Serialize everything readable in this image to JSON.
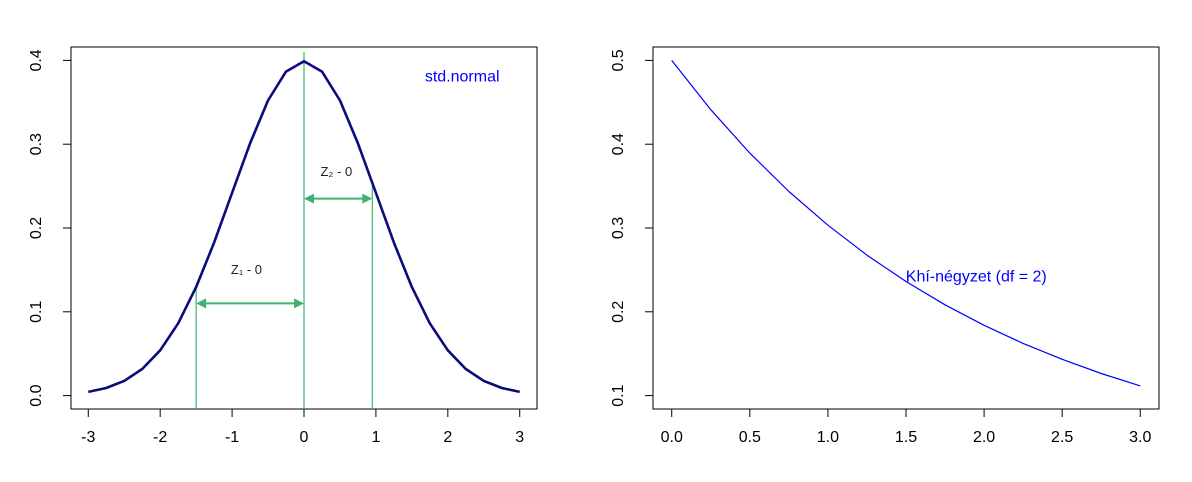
{
  "chart_data": [
    {
      "type": "line",
      "title": "",
      "xlabel": "",
      "ylabel": "",
      "xlim": [
        -3,
        3
      ],
      "ylim": [
        0,
        0.4
      ],
      "xticks": [
        "-3",
        "-2",
        "-1",
        "0",
        "1",
        "2",
        "3"
      ],
      "xtick_values": [
        -3,
        -2,
        -1,
        0,
        1,
        2,
        3
      ],
      "yticks": [
        "0.0",
        "0.1",
        "0.2",
        "0.3",
        "0.4"
      ],
      "ytick_values": [
        0,
        0.1,
        0.2,
        0.3,
        0.4
      ],
      "grid": false,
      "series": [
        {
          "x": [
            -3.0,
            -2.75,
            -2.5,
            -2.25,
            -2.0,
            -1.75,
            -1.5,
            -1.25,
            -1.0,
            -0.75,
            -0.5,
            -0.25,
            0.0,
            0.25,
            0.5,
            0.75,
            1.0,
            1.25,
            1.5,
            1.75,
            2.0,
            2.25,
            2.5,
            2.75,
            3.0
          ],
          "values": [
            0.0044,
            0.0091,
            0.0175,
            0.0317,
            0.054,
            0.0863,
            0.1295,
            0.1826,
            0.242,
            0.3011,
            0.3521,
            0.3867,
            0.3989,
            0.3867,
            0.3521,
            0.3011,
            0.242,
            0.1826,
            0.1295,
            0.0863,
            0.054,
            0.0317,
            0.0175,
            0.0091,
            0.0044
          ],
          "color": "#0b0b7a"
        }
      ],
      "vlines": [
        {
          "x": -1.5,
          "y_top": 0.1295
        },
        {
          "x": 0.0,
          "y_top": 0.41
        },
        {
          "x": 0.95,
          "y_top": 0.2541
        }
      ],
      "arrows": [
        {
          "x_from": -1.5,
          "x_to": 0.0,
          "y": 0.11
        },
        {
          "x_from": 0.0,
          "x_to": 0.95,
          "y": 0.235
        }
      ],
      "annotations": [
        {
          "text": "std.normal",
          "x": 2.2,
          "y": 0.375,
          "color": "#0000ff"
        },
        {
          "text": "Z₁ - 0",
          "x": -0.8,
          "y": 0.145,
          "color": "#222222"
        },
        {
          "text": "Z₂ - 0",
          "x": 0.45,
          "y": 0.262,
          "color": "#222222"
        }
      ],
      "accent_color": "#3cb371"
    },
    {
      "type": "line",
      "title": "",
      "xlabel": "",
      "ylabel": "",
      "xlim": [
        0,
        3
      ],
      "ylim": [
        0.1,
        0.5
      ],
      "xticks": [
        "0.0",
        "0.5",
        "1.0",
        "1.5",
        "2.0",
        "2.5",
        "3.0"
      ],
      "xtick_values": [
        0,
        0.5,
        1.0,
        1.5,
        2.0,
        2.5,
        3.0
      ],
      "yticks": [
        "0.1",
        "0.2",
        "0.3",
        "0.4",
        "0.5"
      ],
      "ytick_values": [
        0.1,
        0.2,
        0.3,
        0.4,
        0.5
      ],
      "grid": false,
      "series": [
        {
          "x": [
            0.0,
            0.25,
            0.5,
            0.75,
            1.0,
            1.25,
            1.5,
            1.75,
            2.0,
            2.25,
            2.5,
            2.75,
            3.0
          ],
          "values": [
            0.5,
            0.4412,
            0.3894,
            0.3436,
            0.3033,
            0.2676,
            0.2362,
            0.2084,
            0.1839,
            0.1623,
            0.1433,
            0.1264,
            0.1116
          ],
          "color": "#0000ff"
        }
      ],
      "annotations": [
        {
          "text": "Khí-négyzet (df = 2)",
          "x": 1.95,
          "y": 0.236,
          "color": "#0000ff"
        }
      ]
    }
  ]
}
